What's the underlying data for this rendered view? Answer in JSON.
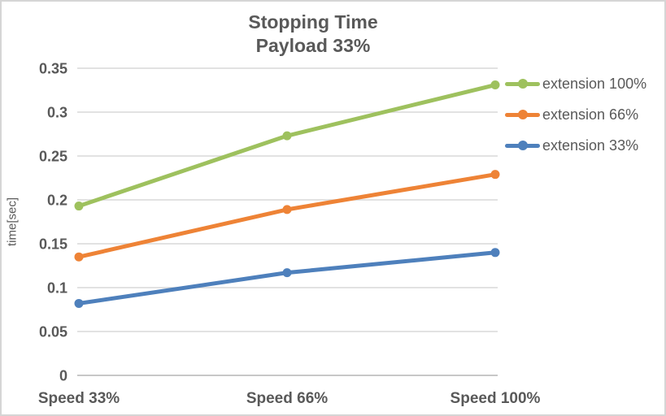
{
  "chart_data": {
    "type": "line",
    "title": "Stopping Time\nPayload 33%",
    "title_lines": [
      "Stopping Time",
      "Payload 33%"
    ],
    "xlabel": "",
    "ylabel": "time[sec]",
    "categories": [
      "Speed 33%",
      "Speed 66%",
      "Speed 100%"
    ],
    "series": [
      {
        "name": "extension 100%",
        "color": "#9EC15E",
        "values": [
          0.193,
          0.273,
          0.331
        ]
      },
      {
        "name": "extension 66%",
        "color": "#EE8336",
        "values": [
          0.135,
          0.189,
          0.229
        ]
      },
      {
        "name": "extension 33%",
        "color": "#4E80BC",
        "values": [
          0.082,
          0.117,
          0.14
        ]
      }
    ],
    "ylim": [
      0,
      0.35
    ],
    "yticks": [
      0,
      0.05,
      0.1,
      0.15,
      0.2,
      0.25,
      0.3,
      0.35
    ],
    "ytick_labels": [
      "0",
      "0.05",
      "0.1",
      "0.15",
      "0.2",
      "0.25",
      "0.3",
      "0.35"
    ],
    "grid": true,
    "legend_position": "right",
    "marker": "circle",
    "colors": {
      "text": "#595959",
      "gridline": "#d9d9d9",
      "axis_line": "#bfbfbf",
      "border": "#d5d5d5",
      "background": "#ffffff"
    }
  }
}
